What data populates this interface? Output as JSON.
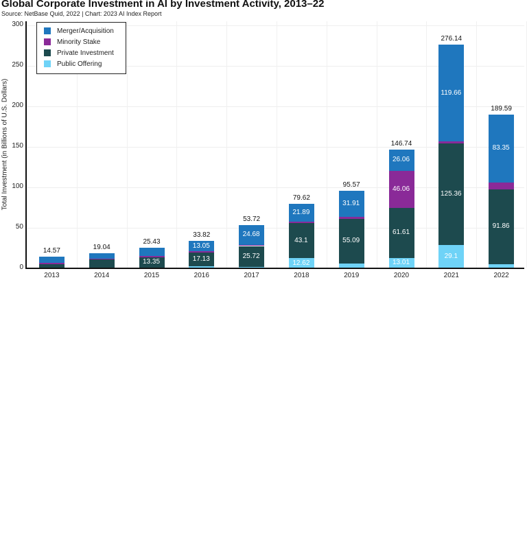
{
  "title": "Global Corporate Investment in AI by Investment Activity, 2013–22",
  "subtitle": "Source: NetBase Quid, 2022 | Chart: 2023 AI Index Report",
  "chart_data": {
    "type": "bar",
    "stacked": true,
    "title": "Global Corporate Investment in AI by Investment Activity, 2013–22",
    "subtitle": "Source: NetBase Quid, 2022 | Chart: 2023 AI Index Report",
    "xlabel": "",
    "ylabel": "Total Investment (in Billions of U.S. Dollars)",
    "ylim": [
      0,
      300
    ],
    "yticks": [
      0,
      50,
      100,
      150,
      200,
      250,
      300
    ],
    "grid": true,
    "legend_position": "upper-left",
    "categories": [
      "2013",
      "2014",
      "2015",
      "2016",
      "2017",
      "2018",
      "2019",
      "2020",
      "2021",
      "2022"
    ],
    "series": [
      {
        "name": "Public Offering",
        "color": "#6fd3f7",
        "values": [
          0.6,
          1.0,
          0.58,
          2.14,
          1.82,
          12.62,
          6.07,
          13.01,
          29.1,
          5.38
        ]
      },
      {
        "name": "Private Investment",
        "color": "#1d4a4e",
        "values": [
          4.9,
          9.8,
          13.35,
          17.13,
          25.72,
          43.1,
          55.09,
          61.61,
          125.36,
          91.86
        ]
      },
      {
        "name": "Minority Stake",
        "color": "#8a2a98",
        "values": [
          1.5,
          1.0,
          1.5,
          1.5,
          1.5,
          2.0,
          2.5,
          46.06,
          2.0,
          9.0
        ]
      },
      {
        "name": "Merger/Acquisition",
        "color": "#1f77be",
        "values": [
          7.57,
          7.24,
          10.0,
          13.05,
          24.68,
          21.89,
          31.91,
          26.06,
          119.66,
          83.35
        ]
      }
    ],
    "totals": [
      14.57,
      19.04,
      25.43,
      33.82,
      53.72,
      79.62,
      95.57,
      146.74,
      276.14,
      189.59
    ],
    "data_labels": {
      "2015": {
        "Private Investment": "13.35"
      },
      "2016": {
        "Merger/Acquisition": "13.05",
        "Private Investment": "17.13"
      },
      "2017": {
        "Merger/Acquisition": "24.68",
        "Private Investment": "25.72"
      },
      "2018": {
        "Merger/Acquisition": "21.89",
        "Private Investment": "43.1",
        "Public Offering": "12.62"
      },
      "2019": {
        "Merger/Acquisition": "31.91",
        "Private Investment": "55.09"
      },
      "2020": {
        "Merger/Acquisition": "26.06",
        "Minority Stake": "46.06",
        "Private Investment": "61.61",
        "Public Offering": "13.01"
      },
      "2021": {
        "Merger/Acquisition": "119.66",
        "Private Investment": "125.36",
        "Public Offering": "29.1"
      },
      "2022": {
        "Merger/Acquisition": "83.35",
        "Private Investment": "91.86"
      }
    }
  },
  "legend": [
    {
      "label": "Merger/Acquisition",
      "color": "#1f77be"
    },
    {
      "label": "Minority Stake",
      "color": "#8a2a98"
    },
    {
      "label": "Private Investment",
      "color": "#1d4a4e"
    },
    {
      "label": "Public Offering",
      "color": "#6fd3f7"
    }
  ]
}
